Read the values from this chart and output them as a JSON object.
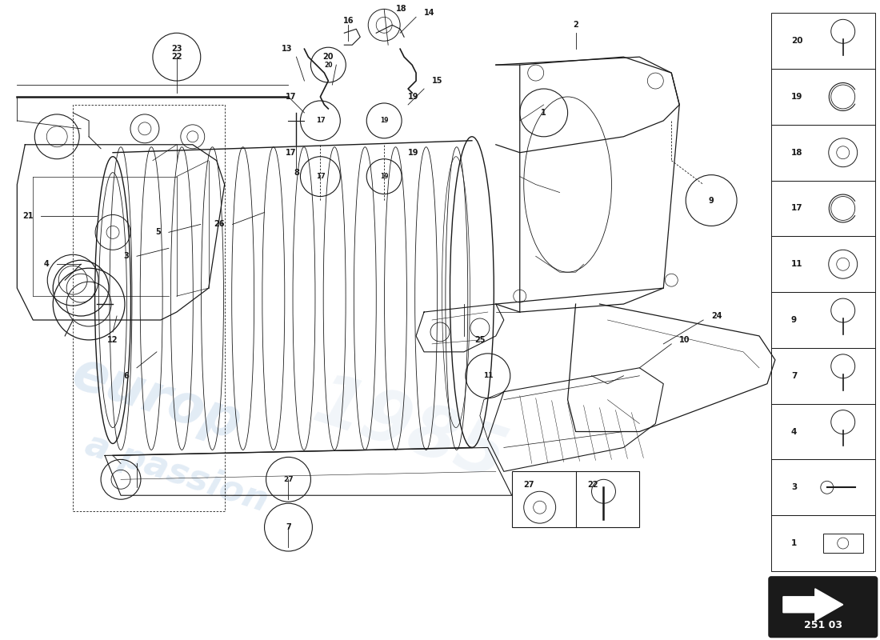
{
  "part_number": "251 03",
  "background_color": "#ffffff",
  "line_color": "#1a1a1a",
  "sidebar_items": [
    {
      "num": "20"
    },
    {
      "num": "19"
    },
    {
      "num": "18"
    },
    {
      "num": "17"
    },
    {
      "num": "11"
    },
    {
      "num": "9"
    },
    {
      "num": "7"
    },
    {
      "num": "4"
    },
    {
      "num": "3"
    },
    {
      "num": "1"
    }
  ]
}
